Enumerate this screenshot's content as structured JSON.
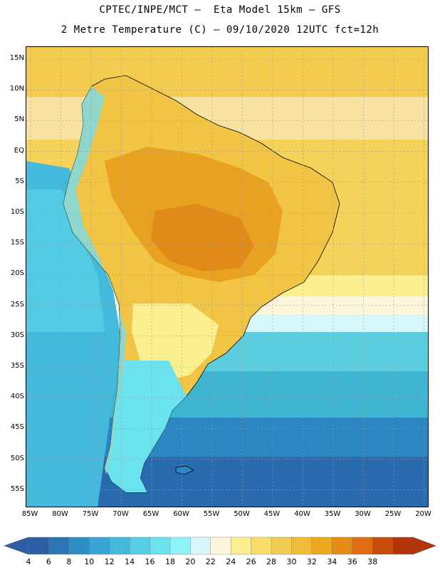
{
  "header": {
    "title_line1": "CPTEC/INPE/MCT –  Eta Model 15km – GFS",
    "title_line2": "2 Metre Temperature (C) – 09/10/2020 12UTC fct=12h"
  },
  "map": {
    "lat_labels": [
      "15N",
      "10N",
      "5N",
      "EQ",
      "5S",
      "10S",
      "15S",
      "20S",
      "25S",
      "30S",
      "35S",
      "40S",
      "45S",
      "50S",
      "55S"
    ],
    "lon_labels": [
      "85W",
      "80W",
      "75W",
      "70W",
      "65W",
      "60W",
      "55W",
      "50W",
      "45W",
      "40W",
      "35W",
      "30W",
      "25W",
      "20W"
    ],
    "colors": {
      "ocean_warm": "#f5d35a",
      "ocean_warm_2": "#f1c543",
      "land_hot": "#e9a21f",
      "land_hotter": "#e28a17",
      "ocean_mid": "#5bcfe0",
      "ocean_cool": "#3fb5d2",
      "ocean_cold": "#2c86c0",
      "ocean_colder": "#2a6aae",
      "andes": "#8fd6cc",
      "coast": "#000000",
      "grid": "#9a9a9a"
    }
  },
  "colorbar": {
    "labels": [
      "4",
      "6",
      "8",
      "10",
      "12",
      "14",
      "16",
      "18",
      "20",
      "22",
      "24",
      "26",
      "28",
      "30",
      "32",
      "34",
      "36",
      "38"
    ],
    "colors": [
      "#2a5fa6",
      "#2c76b8",
      "#2f8ec6",
      "#3aa4d4",
      "#45b9db",
      "#55cde4",
      "#6ae3ee",
      "#8ef3f8",
      "#d6f6fa",
      "#fdf6dd",
      "#fbef8f",
      "#f7dc6a",
      "#f3cc55",
      "#eebc38",
      "#ebaa1e",
      "#e58c16",
      "#dd6d10",
      "#c84a0c",
      "#b5340a"
    ],
    "left_arrow_color": "#2a5fa6",
    "right_arrow_color": "#b5340a"
  }
}
